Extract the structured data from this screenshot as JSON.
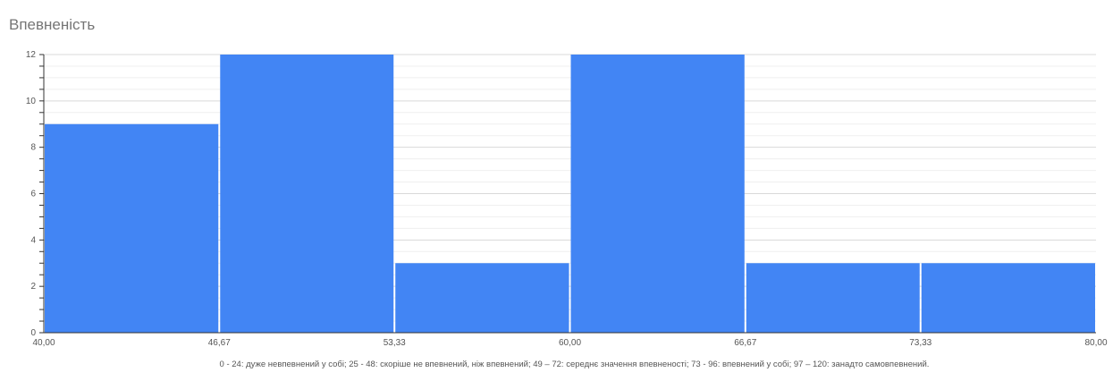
{
  "chart_data": {
    "type": "bar",
    "title": "Впевненість",
    "xlabel": "0 - 24: дуже невпевнений у собі; 25 - 48: скоріше не впевнений, ніж впевнений; 49 – 72: середнє значення впевненості; 73 - 96: впевнений у собі; 97 – 120: занадто самовпевнений.",
    "ylabel": "",
    "bins": [
      {
        "from": 40.0,
        "to": 46.67,
        "value": 9
      },
      {
        "from": 46.67,
        "to": 53.33,
        "value": 12
      },
      {
        "from": 53.33,
        "to": 60.0,
        "value": 3
      },
      {
        "from": 60.0,
        "to": 66.67,
        "value": 12
      },
      {
        "from": 66.67,
        "to": 73.33,
        "value": 3
      },
      {
        "from": 73.33,
        "to": 80.0,
        "value": 3
      }
    ],
    "x_ticks": [
      "40,00",
      "46,67",
      "53,33",
      "60,00",
      "66,67",
      "73,33",
      "80,00"
    ],
    "y_ticks": [
      "0",
      "2",
      "4",
      "6",
      "8",
      "10",
      "12"
    ],
    "xlim": [
      40,
      80
    ],
    "ylim": [
      0,
      12
    ],
    "grid": true,
    "bar_color": "#4285f4"
  }
}
